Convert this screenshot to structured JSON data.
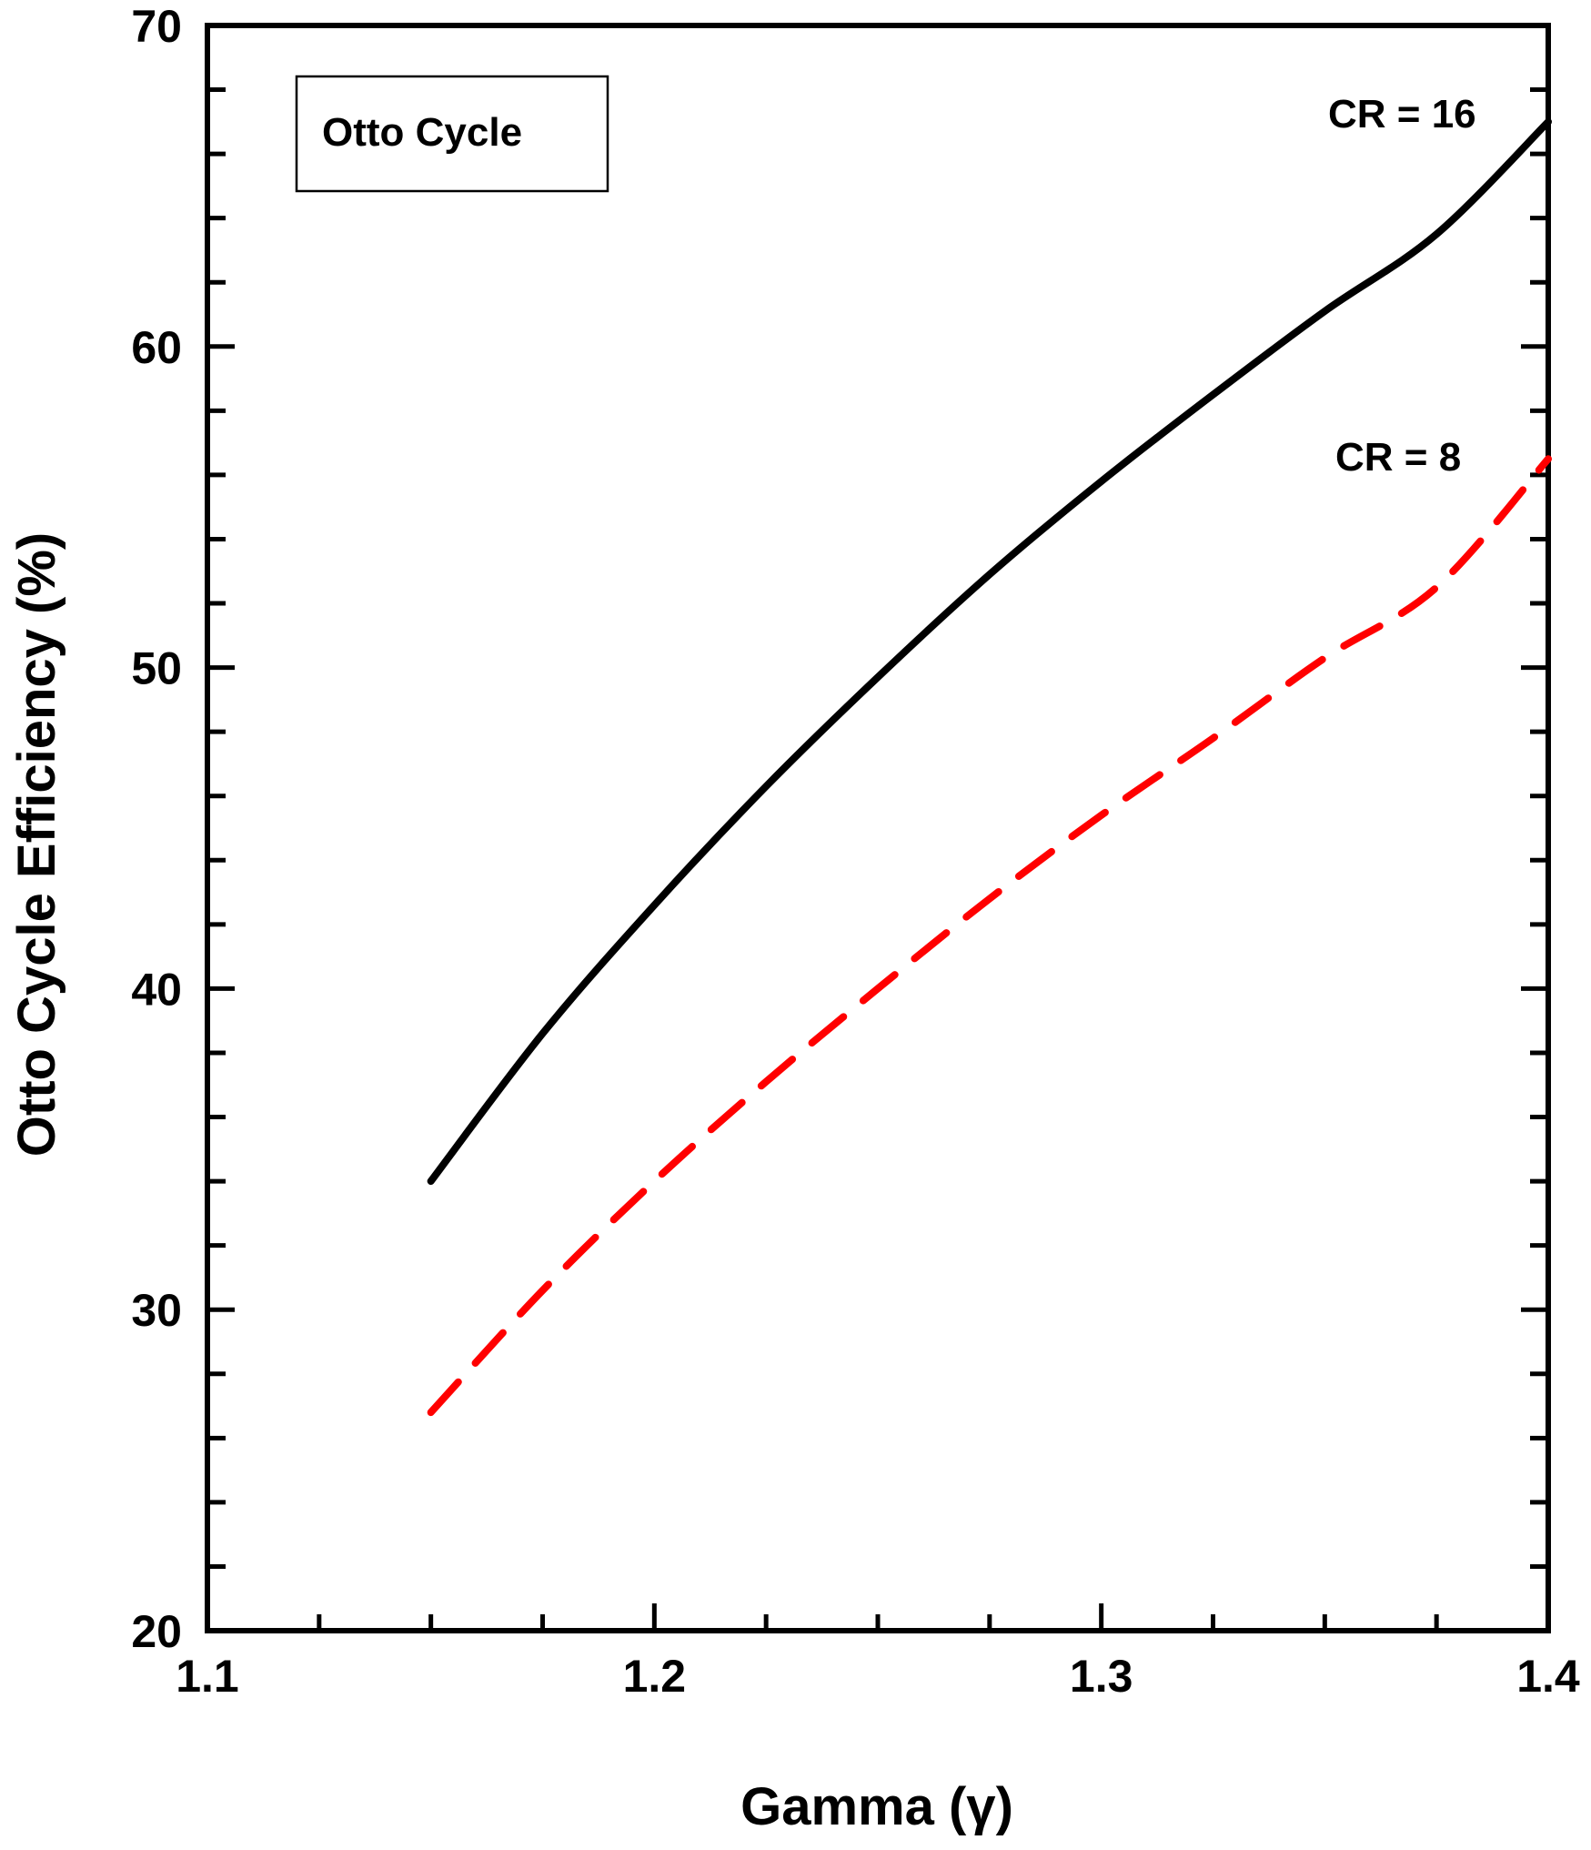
{
  "chart_data": {
    "type": "line",
    "xlabel": "Gamma (γ)",
    "ylabel": "Otto Cycle Efficiency (%)",
    "xlim": [
      1.1,
      1.4
    ],
    "ylim": [
      20,
      70
    ],
    "x_ticks": [
      "1.1",
      "1.2",
      "1.3",
      "1.4"
    ],
    "y_ticks": [
      "20",
      "30",
      "40",
      "50",
      "60",
      "70"
    ],
    "grid": false,
    "legend_box": "Otto Cycle",
    "series": [
      {
        "name": "CR = 16",
        "color": "#000000",
        "style": "solid",
        "x": [
          1.15,
          1.175,
          1.2,
          1.225,
          1.25,
          1.275,
          1.3,
          1.325,
          1.35,
          1.375,
          1.4
        ],
        "y": [
          34.0,
          38.6,
          42.6,
          46.3,
          49.7,
          52.9,
          55.8,
          58.5,
          61.1,
          63.5,
          67.0
        ]
      },
      {
        "name": "CR = 8",
        "color": "#ff0000",
        "style": "dashed",
        "x": [
          1.15,
          1.175,
          1.2,
          1.225,
          1.25,
          1.275,
          1.3,
          1.325,
          1.35,
          1.375,
          1.4
        ],
        "y": [
          26.8,
          30.6,
          34.0,
          37.1,
          40.0,
          42.8,
          45.4,
          47.8,
          50.3,
          52.5,
          56.5
        ]
      }
    ]
  }
}
